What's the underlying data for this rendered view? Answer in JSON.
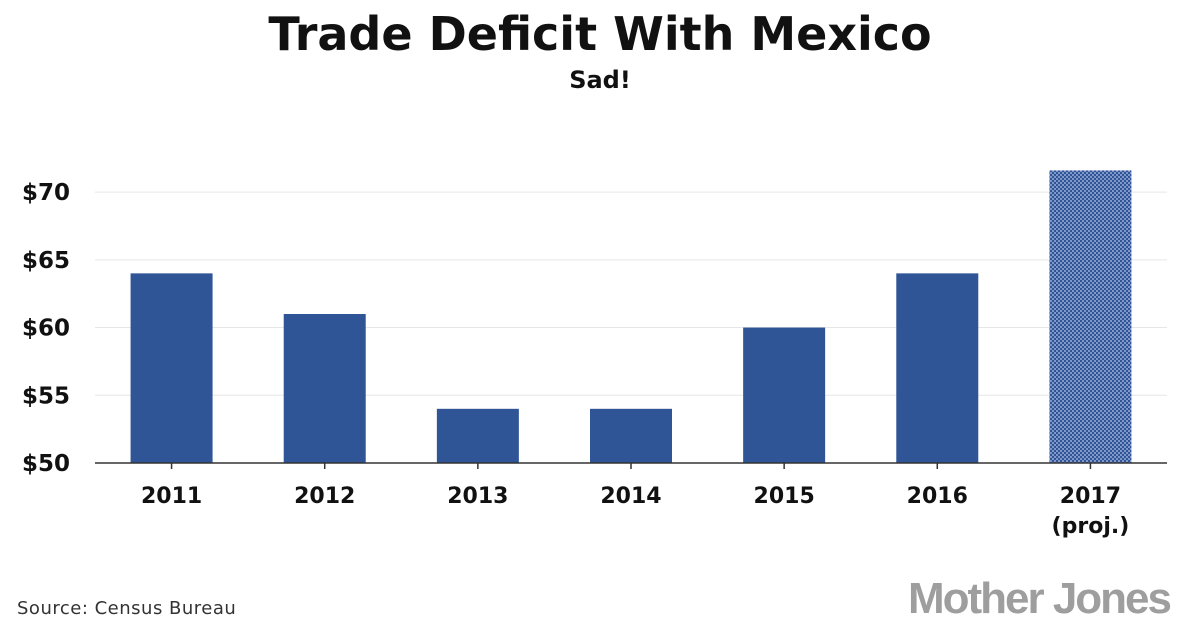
{
  "title": "Trade Deficit With Mexico",
  "subtitle": "Sad!",
  "source": "Source: Census Bureau",
  "brand": "Mother Jones",
  "colors": {
    "bar": "#2f5597",
    "projected_bar": "#5f7cb8",
    "projected_dots": "#2f5597",
    "brand": "#9e9e9e"
  },
  "chart_data": {
    "type": "bar",
    "title": "Trade Deficit With Mexico",
    "subtitle": "Sad!",
    "xlabel": "",
    "ylabel": "",
    "categories": [
      {
        "lines": [
          "2011"
        ],
        "projected": false
      },
      {
        "lines": [
          "2012"
        ],
        "projected": false
      },
      {
        "lines": [
          "2013"
        ],
        "projected": false
      },
      {
        "lines": [
          "2014"
        ],
        "projected": false
      },
      {
        "lines": [
          "2015"
        ],
        "projected": false
      },
      {
        "lines": [
          "2016"
        ],
        "projected": false
      },
      {
        "lines": [
          "2017",
          "(proj.)"
        ],
        "projected": true
      }
    ],
    "values": [
      64,
      61,
      54,
      54,
      60,
      64,
      71.6
    ],
    "ylim": [
      50,
      72
    ],
    "yticks": [
      {
        "value": 50,
        "label": "$50"
      },
      {
        "value": 55,
        "label": "$55"
      },
      {
        "value": 60,
        "label": "$60"
      },
      {
        "value": 65,
        "label": "$65"
      },
      {
        "value": 70,
        "label": "$70"
      }
    ],
    "grid": true,
    "legend": "none"
  }
}
